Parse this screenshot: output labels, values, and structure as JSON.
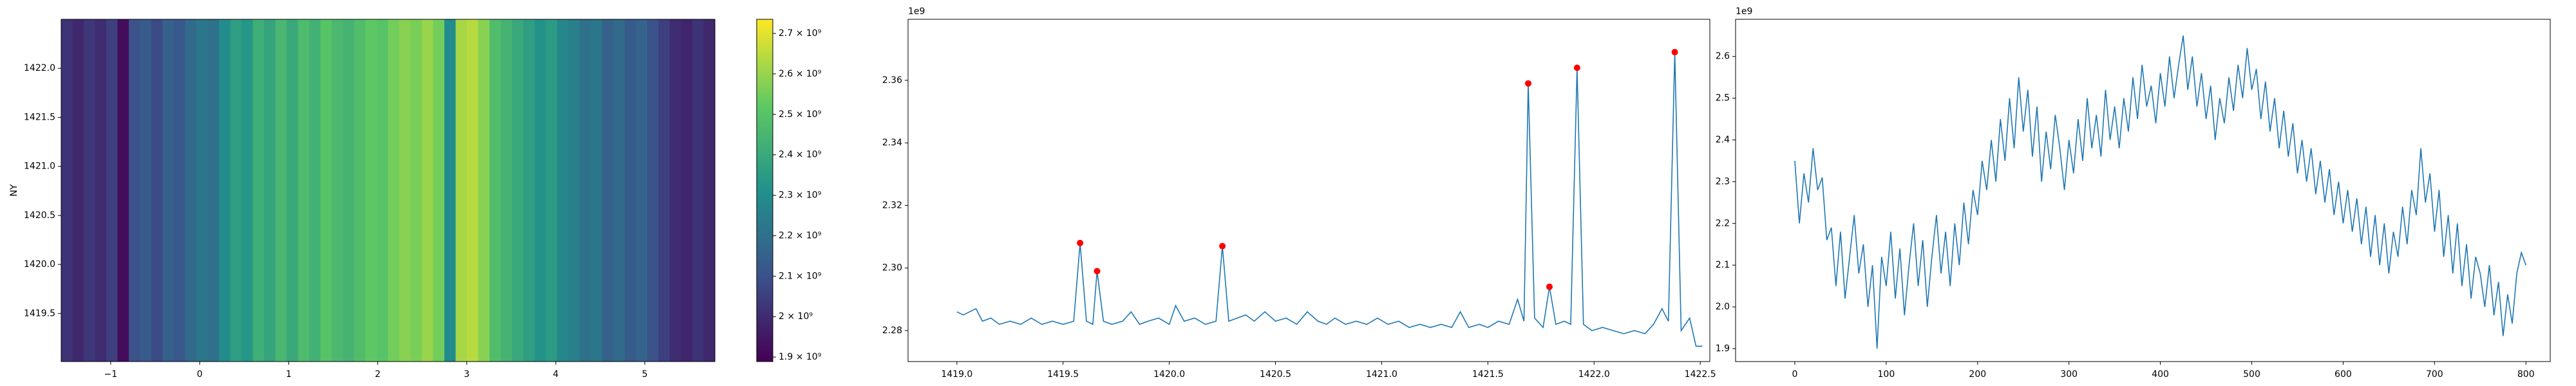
{
  "chart_data": [
    {
      "type": "heatmap",
      "ylabel": "NY",
      "colormap": "viridis",
      "values": [
        2020000000.0,
        1990000000.0,
        2030000000.0,
        2000000000.0,
        2050000000.0,
        1920000000.0,
        2100000000.0,
        2130000000.0,
        2080000000.0,
        2150000000.0,
        2120000000.0,
        2180000000.0,
        2220000000.0,
        2200000000.0,
        2300000000.0,
        2360000000.0,
        2330000000.0,
        2420000000.0,
        2380000000.0,
        2450000000.0,
        2400000000.0,
        2470000000.0,
        2430000000.0,
        2500000000.0,
        2460000000.0,
        2440000000.0,
        2480000000.0,
        2520000000.0,
        2500000000.0,
        2550000000.0,
        2580000000.0,
        2560000000.0,
        2600000000.0,
        2550000000.0,
        2300000000.0,
        2620000000.0,
        2640000000.0,
        2580000000.0,
        2480000000.0,
        2440000000.0,
        2400000000.0,
        2360000000.0,
        2320000000.0,
        2350000000.0,
        2280000000.0,
        2250000000.0,
        2200000000.0,
        2220000000.0,
        2150000000.0,
        2180000000.0,
        2130000000.0,
        2160000000.0,
        2100000000.0,
        2050000000.0,
        2000000000.0,
        1980000000.0,
        2020000000.0,
        1990000000.0
      ],
      "xlim": [
        -1.556,
        5.787
      ],
      "xticks": [
        {
          "value": -1,
          "label": "−1"
        },
        0,
        1,
        2,
        3,
        4,
        5
      ],
      "ylim": [
        1419.01,
        1422.5
      ],
      "yticks": [
        1419.5,
        {
          "value": 1420,
          "label": "1420.0"
        },
        1420.5,
        {
          "value": 1421,
          "label": "1421.0"
        },
        1421.5,
        {
          "value": 1422,
          "label": "1422.0"
        }
      ],
      "colorbar": {
        "lim": [
          1889000000.0,
          2735000000.0
        ],
        "ticks": [
          {
            "value": 1900000000.0,
            "label": "1.9 × 10⁹"
          },
          {
            "value": 2000000000.0,
            "label": "2 × 10⁹"
          },
          {
            "value": 2100000000.0,
            "label": "2.1 × 10⁹"
          },
          {
            "value": 2200000000.0,
            "label": "2.2 × 10⁹"
          },
          {
            "value": 2300000000.0,
            "label": "2.3 × 10⁹"
          },
          {
            "value": 2400000000.0,
            "label": "2.4 × 10⁹"
          },
          {
            "value": 2500000000.0,
            "label": "2.5 × 10⁹"
          },
          {
            "value": 2600000000.0,
            "label": "2.6 × 10⁹"
          },
          {
            "value": 2700000000.0,
            "label": "2.7 × 10⁹"
          }
        ]
      }
    },
    {
      "type": "line",
      "y_offset_label": "1e9",
      "series": [
        {
          "color": "#1f77b4",
          "marker": "none",
          "x": [
            1419.0,
            1419.03,
            1419.06,
            1419.09,
            1419.12,
            1419.16,
            1419.2,
            1419.25,
            1419.3,
            1419.35,
            1419.4,
            1419.45,
            1419.5,
            1419.55,
            1419.58,
            1419.61,
            1419.64,
            1419.66,
            1419.69,
            1419.73,
            1419.78,
            1419.82,
            1419.86,
            1419.9,
            1419.95,
            1420.0,
            1420.03,
            1420.07,
            1420.12,
            1420.17,
            1420.22,
            1420.25,
            1420.28,
            1420.32,
            1420.36,
            1420.4,
            1420.45,
            1420.5,
            1420.55,
            1420.6,
            1420.65,
            1420.7,
            1420.74,
            1420.78,
            1420.83,
            1420.88,
            1420.93,
            1420.98,
            1421.03,
            1421.08,
            1421.13,
            1421.18,
            1421.23,
            1421.28,
            1421.33,
            1421.37,
            1421.41,
            1421.46,
            1421.5,
            1421.55,
            1421.6,
            1421.64,
            1421.67,
            1421.69,
            1421.72,
            1421.76,
            1421.79,
            1421.82,
            1421.86,
            1421.89,
            1421.92,
            1421.95,
            1421.99,
            1422.04,
            1422.09,
            1422.14,
            1422.19,
            1422.24,
            1422.28,
            1422.32,
            1422.35,
            1422.38,
            1422.41,
            1422.45,
            1422.48,
            1422.51
          ],
          "values": [
            2.286,
            2.285,
            2.286,
            2.287,
            2.283,
            2.284,
            2.282,
            2.283,
            2.282,
            2.284,
            2.282,
            2.283,
            2.282,
            2.283,
            2.308,
            2.283,
            2.282,
            2.299,
            2.283,
            2.282,
            2.283,
            2.286,
            2.282,
            2.283,
            2.284,
            2.282,
            2.288,
            2.283,
            2.284,
            2.282,
            2.283,
            2.307,
            2.283,
            2.284,
            2.285,
            2.283,
            2.286,
            2.283,
            2.284,
            2.282,
            2.286,
            2.283,
            2.282,
            2.284,
            2.282,
            2.283,
            2.282,
            2.284,
            2.282,
            2.283,
            2.281,
            2.282,
            2.281,
            2.282,
            2.281,
            2.286,
            2.281,
            2.282,
            2.281,
            2.283,
            2.282,
            2.29,
            2.283,
            2.359,
            2.284,
            2.281,
            2.294,
            2.282,
            2.283,
            2.282,
            2.364,
            2.282,
            2.28,
            2.281,
            2.28,
            2.279,
            2.28,
            2.279,
            2.282,
            2.287,
            2.283,
            2.369,
            2.28,
            2.284,
            2.275,
            2.275
          ]
        },
        {
          "color": "#ff0000",
          "marker": "circle",
          "x": [
            1419.58,
            1419.66,
            1420.25,
            1421.69,
            1421.79,
            1421.92,
            1422.38
          ],
          "values": [
            2.308,
            2.299,
            2.307,
            2.359,
            2.294,
            2.364,
            2.369
          ]
        }
      ],
      "xlim": [
        1418.77,
        1422.545
      ],
      "xticks": [
        {
          "value": 1419,
          "label": "1419.0"
        },
        1419.5,
        {
          "value": 1420,
          "label": "1420.0"
        },
        1420.5,
        {
          "value": 1421,
          "label": "1421.0"
        },
        1421.5,
        {
          "value": 1422,
          "label": "1422.0"
        },
        1422.5
      ],
      "ylim": [
        2.2701,
        2.3795
      ],
      "yticks": [
        2.28,
        {
          "value": 2.3,
          "label": "2.30"
        },
        2.32,
        2.34,
        2.36
      ]
    },
    {
      "type": "line",
      "y_offset_label": "1e9",
      "series": [
        {
          "color": "#1f77b4",
          "marker": "none",
          "x": [
            0,
            5,
            10,
            15,
            20,
            25,
            30,
            35,
            40,
            45,
            50,
            55,
            60,
            65,
            70,
            75,
            80,
            85,
            90,
            95,
            100,
            105,
            110,
            115,
            120,
            125,
            130,
            135,
            140,
            145,
            150,
            155,
            160,
            165,
            170,
            175,
            180,
            185,
            190,
            195,
            200,
            205,
            210,
            215,
            220,
            225,
            230,
            235,
            240,
            245,
            250,
            255,
            260,
            265,
            270,
            275,
            280,
            285,
            290,
            295,
            300,
            305,
            310,
            315,
            320,
            325,
            330,
            335,
            340,
            345,
            350,
            355,
            360,
            365,
            370,
            375,
            380,
            385,
            390,
            395,
            400,
            405,
            410,
            415,
            420,
            425,
            430,
            435,
            440,
            445,
            450,
            455,
            460,
            465,
            470,
            475,
            480,
            485,
            490,
            495,
            500,
            505,
            510,
            515,
            520,
            525,
            530,
            535,
            540,
            545,
            550,
            555,
            560,
            565,
            570,
            575,
            580,
            585,
            590,
            595,
            600,
            605,
            610,
            615,
            620,
            625,
            630,
            635,
            640,
            645,
            650,
            655,
            660,
            665,
            670,
            675,
            680,
            685,
            690,
            695,
            700,
            705,
            710,
            715,
            720,
            725,
            730,
            735,
            740,
            745,
            750,
            755,
            760,
            765,
            770,
            775,
            780,
            785,
            790,
            795,
            800
          ],
          "values": [
            2.35,
            2.2,
            2.32,
            2.25,
            2.38,
            2.28,
            2.31,
            2.16,
            2.19,
            2.05,
            2.18,
            2.02,
            2.12,
            2.22,
            2.08,
            2.15,
            2.0,
            2.1,
            1.9,
            2.12,
            2.05,
            2.18,
            2.02,
            2.14,
            1.98,
            2.1,
            2.2,
            2.05,
            2.16,
            2.0,
            2.12,
            2.22,
            2.08,
            2.18,
            2.05,
            2.2,
            2.1,
            2.25,
            2.15,
            2.28,
            2.22,
            2.35,
            2.28,
            2.4,
            2.3,
            2.45,
            2.35,
            2.5,
            2.38,
            2.55,
            2.42,
            2.52,
            2.36,
            2.48,
            2.3,
            2.42,
            2.33,
            2.46,
            2.38,
            2.28,
            2.4,
            2.32,
            2.45,
            2.35,
            2.5,
            2.38,
            2.46,
            2.36,
            2.52,
            2.4,
            2.48,
            2.38,
            2.5,
            2.42,
            2.55,
            2.45,
            2.58,
            2.48,
            2.53,
            2.44,
            2.56,
            2.48,
            2.6,
            2.5,
            2.58,
            2.65,
            2.52,
            2.6,
            2.48,
            2.56,
            2.45,
            2.53,
            2.4,
            2.5,
            2.44,
            2.55,
            2.47,
            2.58,
            2.5,
            2.62,
            2.52,
            2.57,
            2.45,
            2.54,
            2.42,
            2.5,
            2.38,
            2.47,
            2.36,
            2.44,
            2.32,
            2.4,
            2.3,
            2.38,
            2.27,
            2.35,
            2.25,
            2.33,
            2.22,
            2.3,
            2.2,
            2.28,
            2.18,
            2.26,
            2.15,
            2.24,
            2.12,
            2.22,
            2.1,
            2.2,
            2.08,
            2.18,
            2.12,
            2.24,
            2.15,
            2.28,
            2.22,
            2.38,
            2.25,
            2.32,
            2.18,
            2.28,
            2.12,
            2.22,
            2.08,
            2.2,
            2.05,
            2.15,
            2.02,
            2.12,
            2.08,
            2.0,
            2.1,
            1.98,
            2.06,
            1.93,
            2.03,
            1.96,
            2.08,
            2.13,
            2.1
          ]
        }
      ],
      "xlim": [
        -64.8,
        826.6
      ],
      "xticks": [
        0,
        100,
        200,
        300,
        400,
        500,
        600,
        700,
        800
      ],
      "ylim": [
        1.869,
        2.689
      ],
      "yticks": [
        1.9,
        {
          "value": 2,
          "label": "2.0"
        },
        2.1,
        2.2,
        2.3,
        2.4,
        2.5,
        2.6
      ]
    }
  ]
}
